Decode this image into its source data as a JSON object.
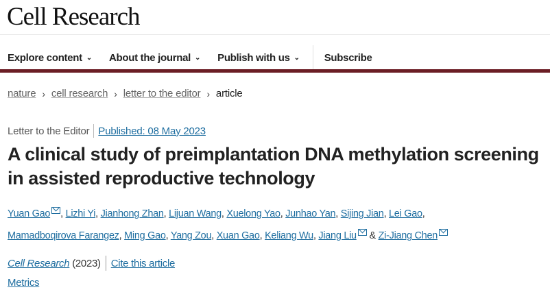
{
  "header": {
    "logo": "Cell Research"
  },
  "nav": {
    "items": [
      {
        "label": "Explore content",
        "chevron": "chevron-down-icon"
      },
      {
        "label": "About the journal",
        "chevron": "chevron-down-icon"
      },
      {
        "label": "Publish with us",
        "chevron": "chevron-down-icon"
      }
    ],
    "subscribe": "Subscribe"
  },
  "breadcrumb": [
    "nature",
    "cell research",
    "letter to the editor",
    "article"
  ],
  "article": {
    "type": "Letter to the Editor",
    "published": "Published: 08 May 2023",
    "title": "A clinical study of preimplantation DNA methylation screening in assisted reproductive technology",
    "authors": [
      "Yuan Gao",
      "Lizhi Yi",
      "Jianhong Zhan",
      "Lijuan Wang",
      "Xuelong Yao",
      "Junhao Yan",
      "Sijing Jian",
      "Lei Gao",
      "Mamadboqirova Farangez",
      "Ming Gao",
      "Yang Zou",
      "Xuan Gao",
      "Keliang Wu",
      "Jiang Liu",
      "Zi-Jiang Chen"
    ],
    "journal": "Cell Research",
    "year": "(2023)",
    "cite": "Cite this article",
    "metrics": "Metrics",
    "ampersand": "&"
  },
  "colors": {
    "brand_bar": "#6b1d24",
    "link": "#1f6ea0"
  }
}
